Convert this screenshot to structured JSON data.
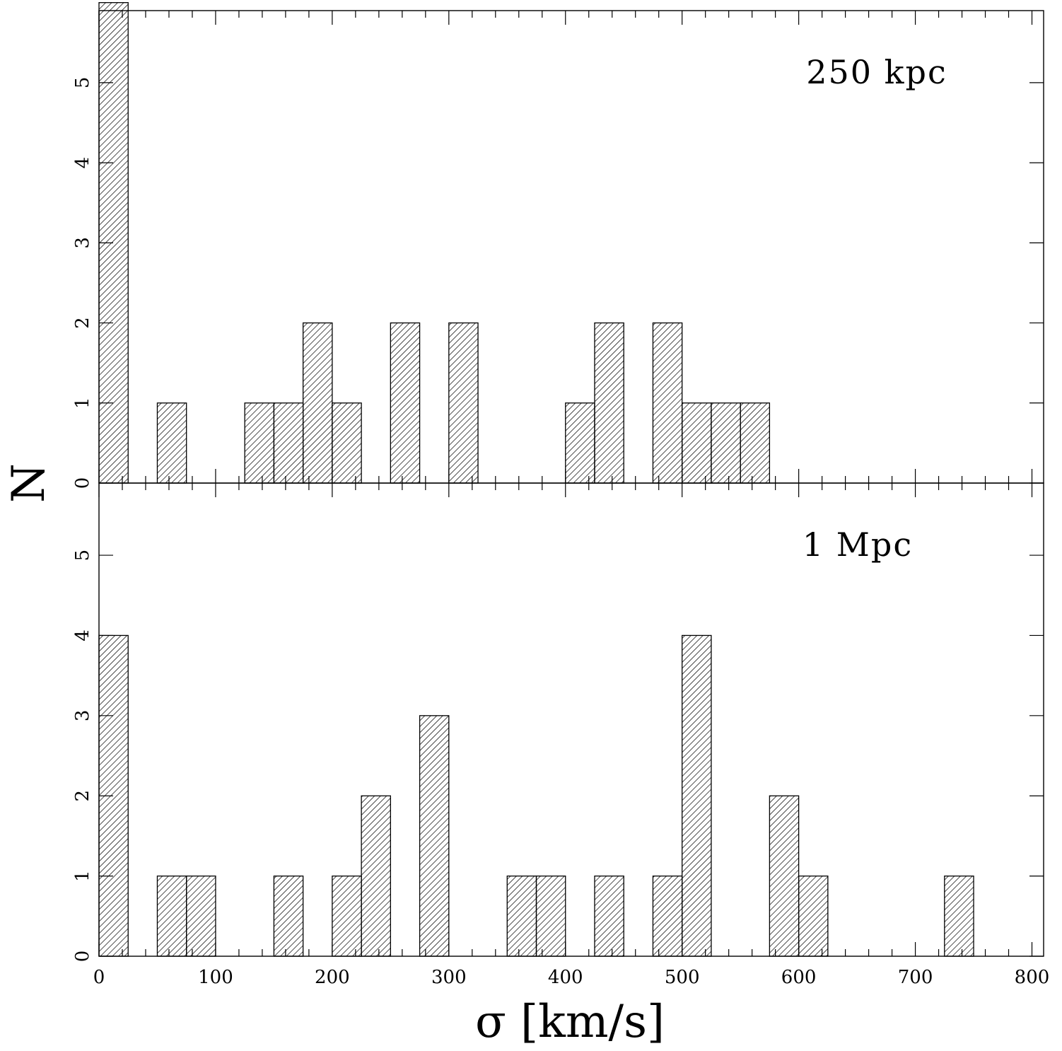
{
  "chart_data": [
    {
      "type": "bar",
      "panel_label": "250 kpc",
      "bin_width": 25,
      "bins": [
        {
          "x": 0,
          "n": 6
        },
        {
          "x": 25,
          "n": 0
        },
        {
          "x": 50,
          "n": 1
        },
        {
          "x": 75,
          "n": 0
        },
        {
          "x": 100,
          "n": 0
        },
        {
          "x": 125,
          "n": 1
        },
        {
          "x": 150,
          "n": 1
        },
        {
          "x": 175,
          "n": 2
        },
        {
          "x": 200,
          "n": 1
        },
        {
          "x": 225,
          "n": 0
        },
        {
          "x": 250,
          "n": 2
        },
        {
          "x": 275,
          "n": 0
        },
        {
          "x": 300,
          "n": 2
        },
        {
          "x": 325,
          "n": 0
        },
        {
          "x": 350,
          "n": 0
        },
        {
          "x": 375,
          "n": 0
        },
        {
          "x": 400,
          "n": 1
        },
        {
          "x": 425,
          "n": 2
        },
        {
          "x": 450,
          "n": 0
        },
        {
          "x": 475,
          "n": 2
        },
        {
          "x": 500,
          "n": 1
        },
        {
          "x": 525,
          "n": 1
        },
        {
          "x": 550,
          "n": 1
        }
      ],
      "xlim": [
        0,
        810
      ],
      "ylim": [
        0,
        5.9
      ],
      "y_ticks": [
        0,
        1,
        2,
        3,
        4,
        5
      ]
    },
    {
      "type": "bar",
      "panel_label": "1 Mpc",
      "bin_width": 25,
      "bins": [
        {
          "x": 0,
          "n": 4
        },
        {
          "x": 25,
          "n": 0
        },
        {
          "x": 50,
          "n": 1
        },
        {
          "x": 75,
          "n": 1
        },
        {
          "x": 100,
          "n": 0
        },
        {
          "x": 125,
          "n": 0
        },
        {
          "x": 150,
          "n": 1
        },
        {
          "x": 175,
          "n": 0
        },
        {
          "x": 200,
          "n": 1
        },
        {
          "x": 225,
          "n": 2
        },
        {
          "x": 250,
          "n": 0
        },
        {
          "x": 275,
          "n": 3
        },
        {
          "x": 300,
          "n": 0
        },
        {
          "x": 325,
          "n": 0
        },
        {
          "x": 350,
          "n": 1
        },
        {
          "x": 375,
          "n": 1
        },
        {
          "x": 400,
          "n": 0
        },
        {
          "x": 425,
          "n": 1
        },
        {
          "x": 450,
          "n": 0
        },
        {
          "x": 475,
          "n": 1
        },
        {
          "x": 500,
          "n": 4
        },
        {
          "x": 525,
          "n": 0
        },
        {
          "x": 550,
          "n": 0
        },
        {
          "x": 575,
          "n": 2
        },
        {
          "x": 600,
          "n": 1
        },
        {
          "x": 625,
          "n": 0
        },
        {
          "x": 650,
          "n": 0
        },
        {
          "x": 675,
          "n": 0
        },
        {
          "x": 700,
          "n": 0
        },
        {
          "x": 725,
          "n": 1
        }
      ],
      "xlim": [
        0,
        810
      ],
      "ylim": [
        0,
        5.9
      ],
      "y_ticks": [
        0,
        1,
        2,
        3,
        4,
        5
      ],
      "x_ticks": [
        0,
        100,
        200,
        300,
        400,
        500,
        600,
        700,
        800
      ]
    }
  ],
  "xlabel": "σ [km/s]",
  "ylabel": "N",
  "style": {
    "hatch": "diagonal",
    "fill": "#ffffff",
    "stroke": "#000000"
  }
}
